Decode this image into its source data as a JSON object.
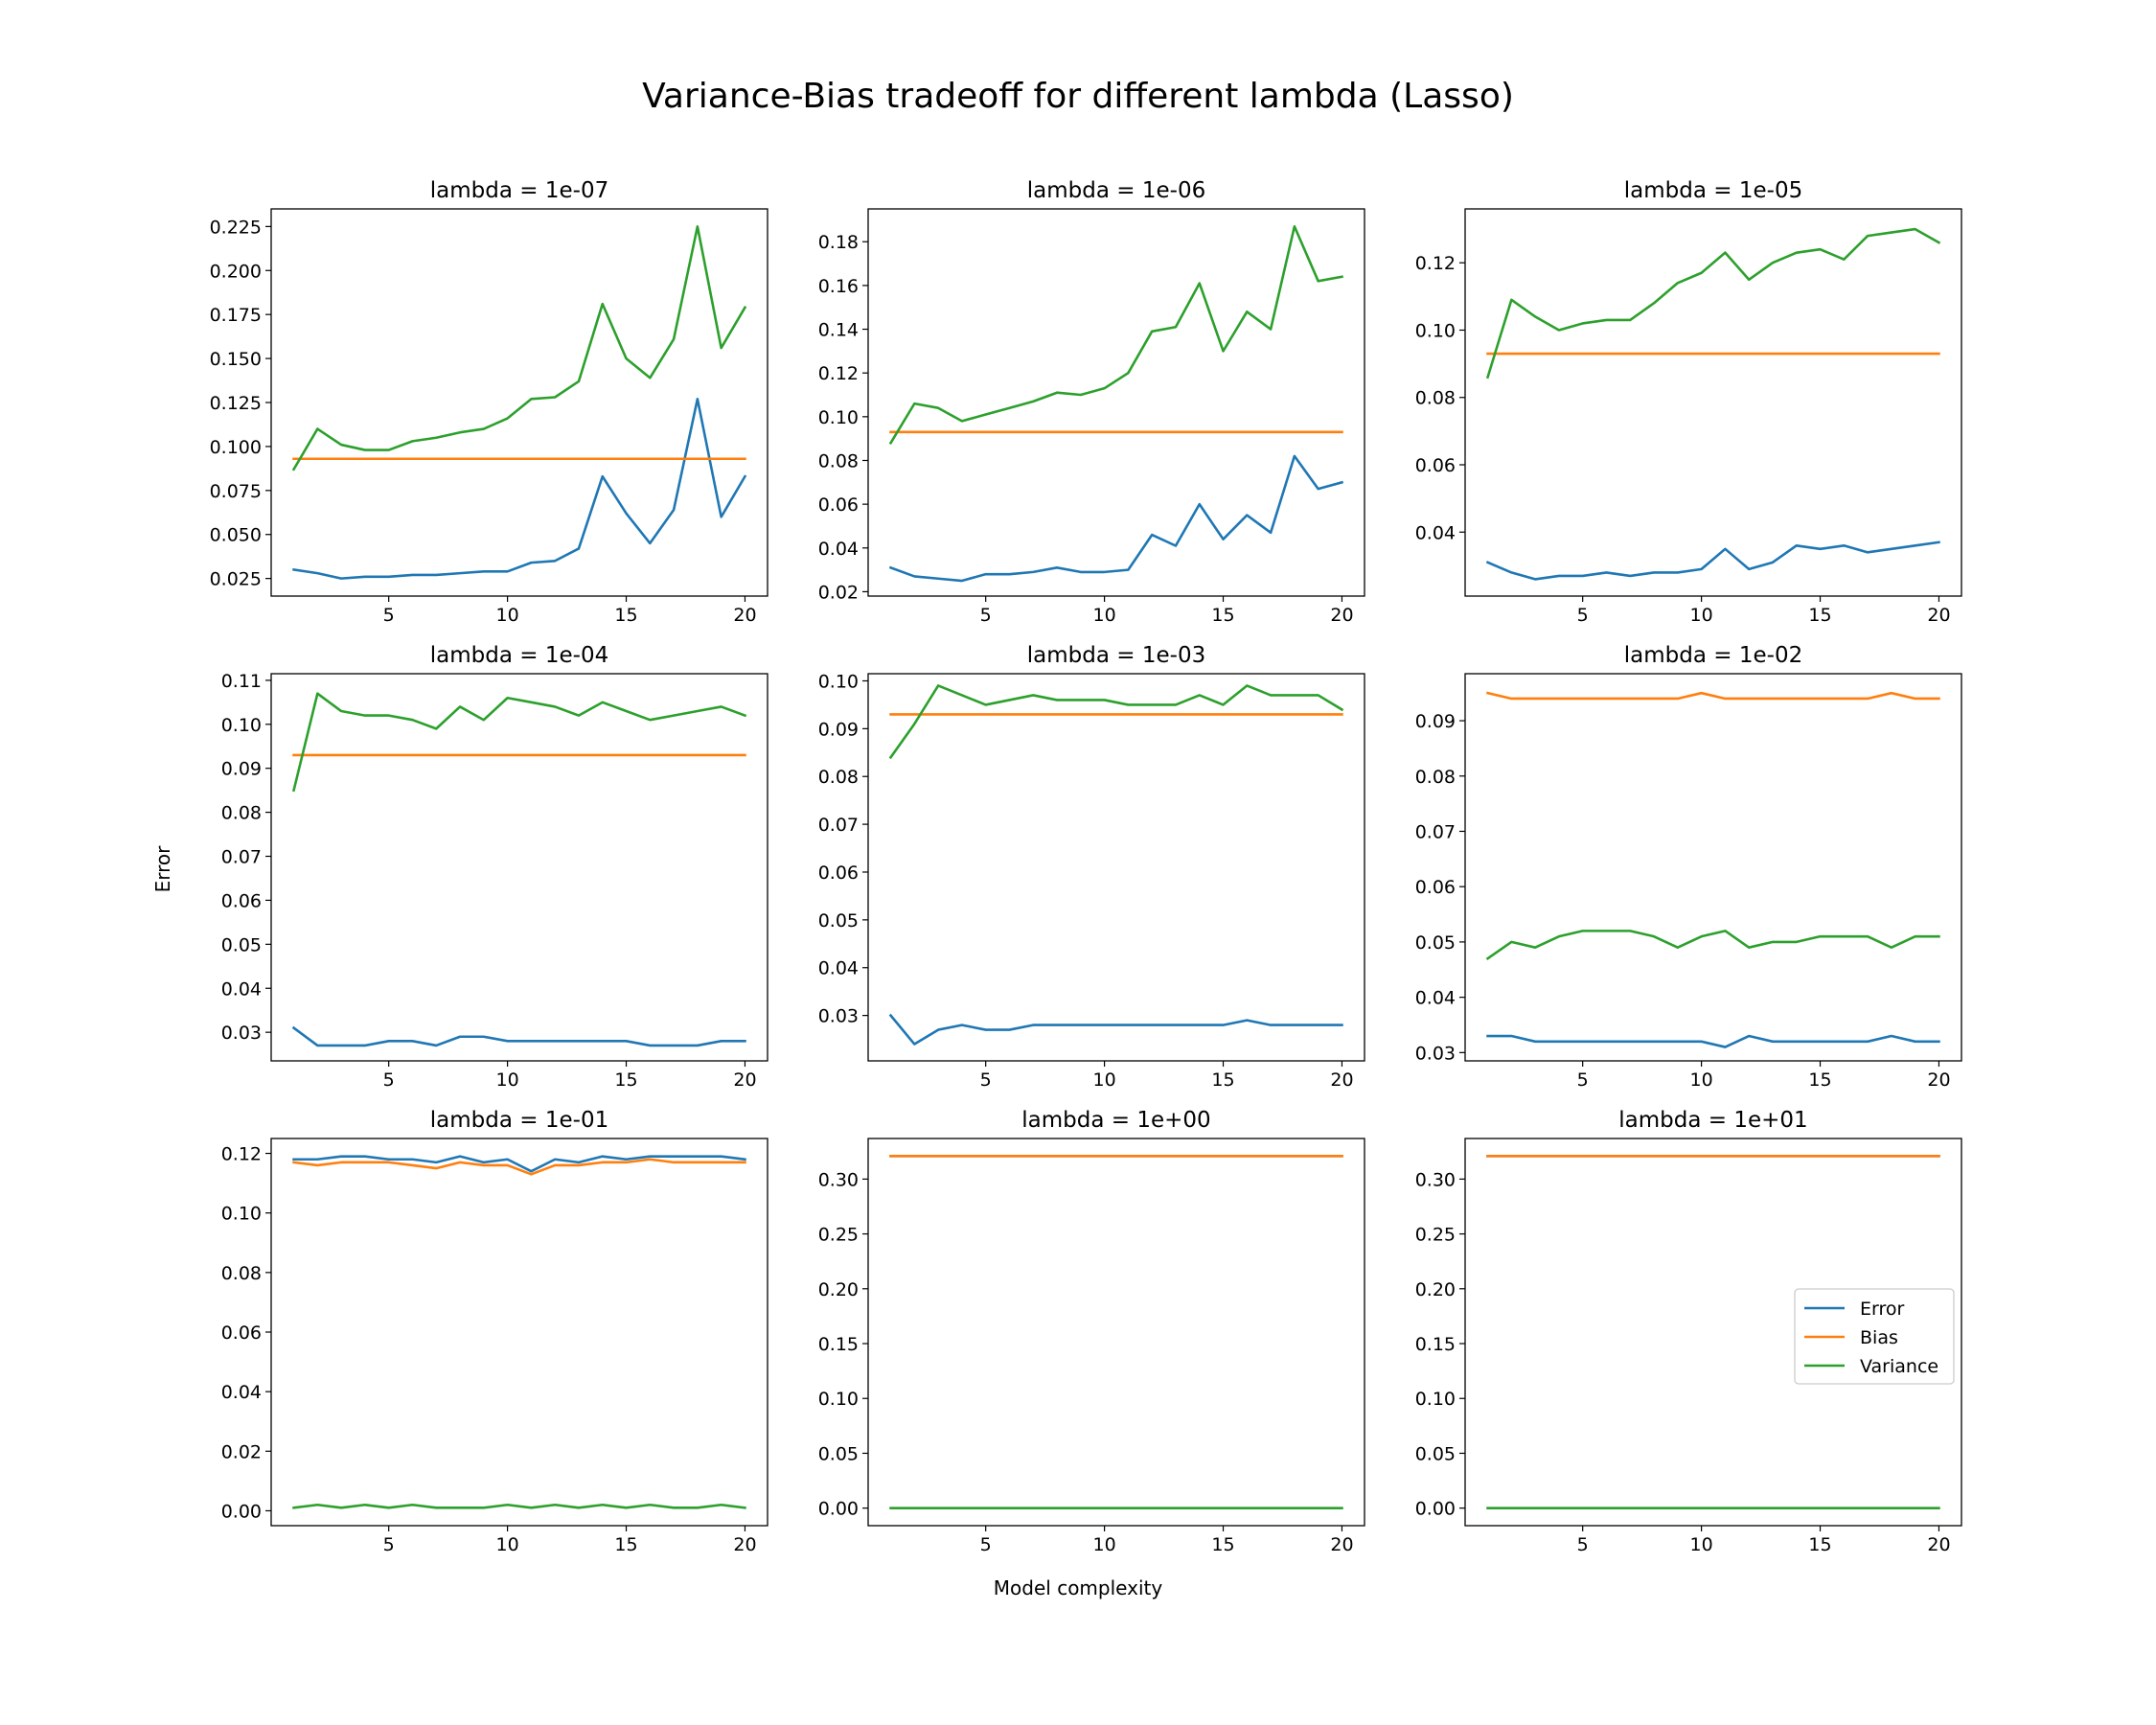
{
  "figure": {
    "suptitle": "Variance-Bias tradeoff for different lambda (Lasso)",
    "xlabel": "Model complexity",
    "ylabel": "Error"
  },
  "colors": {
    "Error": "#1f77b4",
    "Bias": "#ff7f0e",
    "Variance": "#2ca02c"
  },
  "legend": {
    "entries": [
      "Error",
      "Bias",
      "Variance"
    ],
    "panel_index": 8,
    "placement": "center-right"
  },
  "chart_data": [
    {
      "type": "line",
      "title": "lambda = 1e-07",
      "x": [
        1,
        2,
        3,
        4,
        5,
        6,
        7,
        8,
        9,
        10,
        11,
        12,
        13,
        14,
        15,
        16,
        17,
        18,
        19,
        20
      ],
      "xticks": [
        5,
        10,
        15,
        20
      ],
      "xlim": [
        0.05,
        20.95
      ],
      "ylim": [
        0.015,
        0.235
      ],
      "yticks": [
        0.025,
        0.05,
        0.075,
        0.1,
        0.125,
        0.15,
        0.175,
        0.2,
        0.225
      ],
      "ytick_labels": [
        "0.025",
        "0.050",
        "0.075",
        "0.100",
        "0.125",
        "0.150",
        "0.175",
        "0.200",
        "0.225"
      ],
      "series": [
        {
          "name": "Error",
          "values": [
            0.03,
            0.028,
            0.025,
            0.026,
            0.026,
            0.027,
            0.027,
            0.028,
            0.029,
            0.029,
            0.034,
            0.035,
            0.042,
            0.083,
            0.062,
            0.045,
            0.064,
            0.127,
            0.06,
            0.083
          ]
        },
        {
          "name": "Bias",
          "values": [
            0.093,
            0.093,
            0.093,
            0.093,
            0.093,
            0.093,
            0.093,
            0.093,
            0.093,
            0.093,
            0.093,
            0.093,
            0.093,
            0.093,
            0.093,
            0.093,
            0.093,
            0.093,
            0.093,
            0.093
          ]
        },
        {
          "name": "Variance",
          "values": [
            0.087,
            0.11,
            0.101,
            0.098,
            0.098,
            0.103,
            0.105,
            0.108,
            0.11,
            0.116,
            0.127,
            0.128,
            0.137,
            0.181,
            0.15,
            0.139,
            0.161,
            0.225,
            0.156,
            0.179
          ]
        }
      ]
    },
    {
      "type": "line",
      "title": "lambda = 1e-06",
      "x": [
        1,
        2,
        3,
        4,
        5,
        6,
        7,
        8,
        9,
        10,
        11,
        12,
        13,
        14,
        15,
        16,
        17,
        18,
        19,
        20
      ],
      "xticks": [
        5,
        10,
        15,
        20
      ],
      "xlim": [
        0.05,
        20.95
      ],
      "ylim": [
        0.018,
        0.195
      ],
      "yticks": [
        0.02,
        0.04,
        0.06,
        0.08,
        0.1,
        0.12,
        0.14,
        0.16,
        0.18
      ],
      "ytick_labels": [
        "0.02",
        "0.04",
        "0.06",
        "0.08",
        "0.10",
        "0.12",
        "0.14",
        "0.16",
        "0.18"
      ],
      "series": [
        {
          "name": "Error",
          "values": [
            0.031,
            0.027,
            0.026,
            0.025,
            0.028,
            0.028,
            0.029,
            0.031,
            0.029,
            0.029,
            0.03,
            0.046,
            0.041,
            0.06,
            0.044,
            0.055,
            0.047,
            0.082,
            0.067,
            0.07
          ]
        },
        {
          "name": "Bias",
          "values": [
            0.093,
            0.093,
            0.093,
            0.093,
            0.093,
            0.093,
            0.093,
            0.093,
            0.093,
            0.093,
            0.093,
            0.093,
            0.093,
            0.093,
            0.093,
            0.093,
            0.093,
            0.093,
            0.093,
            0.093
          ]
        },
        {
          "name": "Variance",
          "values": [
            0.088,
            0.106,
            0.104,
            0.098,
            0.101,
            0.104,
            0.107,
            0.111,
            0.11,
            0.113,
            0.12,
            0.139,
            0.141,
            0.161,
            0.13,
            0.148,
            0.14,
            0.187,
            0.162,
            0.164
          ]
        }
      ]
    },
    {
      "type": "line",
      "title": "lambda = 1e-05",
      "x": [
        1,
        2,
        3,
        4,
        5,
        6,
        7,
        8,
        9,
        10,
        11,
        12,
        13,
        14,
        15,
        16,
        17,
        18,
        19,
        20
      ],
      "xticks": [
        5,
        10,
        15,
        20
      ],
      "xlim": [
        0.05,
        20.95
      ],
      "ylim": [
        0.021,
        0.136
      ],
      "yticks": [
        0.04,
        0.06,
        0.08,
        0.1,
        0.12
      ],
      "ytick_labels": [
        "0.04",
        "0.06",
        "0.08",
        "0.10",
        "0.12"
      ],
      "series": [
        {
          "name": "Error",
          "values": [
            0.031,
            0.028,
            0.026,
            0.027,
            0.027,
            0.028,
            0.027,
            0.028,
            0.028,
            0.029,
            0.035,
            0.029,
            0.031,
            0.036,
            0.035,
            0.036,
            0.034,
            0.035,
            0.036,
            0.037
          ]
        },
        {
          "name": "Bias",
          "values": [
            0.093,
            0.093,
            0.093,
            0.093,
            0.093,
            0.093,
            0.093,
            0.093,
            0.093,
            0.093,
            0.093,
            0.093,
            0.093,
            0.093,
            0.093,
            0.093,
            0.093,
            0.093,
            0.093,
            0.093
          ]
        },
        {
          "name": "Variance",
          "values": [
            0.086,
            0.109,
            0.104,
            0.1,
            0.102,
            0.103,
            0.103,
            0.108,
            0.114,
            0.117,
            0.123,
            0.115,
            0.12,
            0.123,
            0.124,
            0.121,
            0.128,
            0.129,
            0.13,
            0.126
          ]
        }
      ]
    },
    {
      "type": "line",
      "title": "lambda = 1e-04",
      "x": [
        1,
        2,
        3,
        4,
        5,
        6,
        7,
        8,
        9,
        10,
        11,
        12,
        13,
        14,
        15,
        16,
        17,
        18,
        19,
        20
      ],
      "xticks": [
        5,
        10,
        15,
        20
      ],
      "xlim": [
        0.05,
        20.95
      ],
      "ylim": [
        0.0235,
        0.1115
      ],
      "yticks": [
        0.03,
        0.04,
        0.05,
        0.06,
        0.07,
        0.08,
        0.09,
        0.1,
        0.11
      ],
      "ytick_labels": [
        "0.03",
        "0.04",
        "0.05",
        "0.06",
        "0.07",
        "0.08",
        "0.09",
        "0.10",
        "0.11"
      ],
      "series": [
        {
          "name": "Error",
          "values": [
            0.031,
            0.027,
            0.027,
            0.027,
            0.028,
            0.028,
            0.027,
            0.029,
            0.029,
            0.028,
            0.028,
            0.028,
            0.028,
            0.028,
            0.028,
            0.027,
            0.027,
            0.027,
            0.028,
            0.028
          ]
        },
        {
          "name": "Bias",
          "values": [
            0.093,
            0.093,
            0.093,
            0.093,
            0.093,
            0.093,
            0.093,
            0.093,
            0.093,
            0.093,
            0.093,
            0.093,
            0.093,
            0.093,
            0.093,
            0.093,
            0.093,
            0.093,
            0.093,
            0.093
          ]
        },
        {
          "name": "Variance",
          "values": [
            0.085,
            0.107,
            0.103,
            0.102,
            0.102,
            0.101,
            0.099,
            0.104,
            0.101,
            0.106,
            0.105,
            0.104,
            0.102,
            0.105,
            0.103,
            0.101,
            0.102,
            0.103,
            0.104,
            0.102
          ]
        }
      ]
    },
    {
      "type": "line",
      "title": "lambda = 1e-03",
      "x": [
        1,
        2,
        3,
        4,
        5,
        6,
        7,
        8,
        9,
        10,
        11,
        12,
        13,
        14,
        15,
        16,
        17,
        18,
        19,
        20
      ],
      "xticks": [
        5,
        10,
        15,
        20
      ],
      "xlim": [
        0.05,
        20.95
      ],
      "ylim": [
        0.0205,
        0.1015
      ],
      "yticks": [
        0.03,
        0.04,
        0.05,
        0.06,
        0.07,
        0.08,
        0.09,
        0.1
      ],
      "ytick_labels": [
        "0.03",
        "0.04",
        "0.05",
        "0.06",
        "0.07",
        "0.08",
        "0.09",
        "0.10"
      ],
      "series": [
        {
          "name": "Error",
          "values": [
            0.03,
            0.024,
            0.027,
            0.028,
            0.027,
            0.027,
            0.028,
            0.028,
            0.028,
            0.028,
            0.028,
            0.028,
            0.028,
            0.028,
            0.028,
            0.029,
            0.028,
            0.028,
            0.028,
            0.028
          ]
        },
        {
          "name": "Bias",
          "values": [
            0.093,
            0.093,
            0.093,
            0.093,
            0.093,
            0.093,
            0.093,
            0.093,
            0.093,
            0.093,
            0.093,
            0.093,
            0.093,
            0.093,
            0.093,
            0.093,
            0.093,
            0.093,
            0.093,
            0.093
          ]
        },
        {
          "name": "Variance",
          "values": [
            0.084,
            0.091,
            0.099,
            0.097,
            0.095,
            0.096,
            0.097,
            0.096,
            0.096,
            0.096,
            0.095,
            0.095,
            0.095,
            0.097,
            0.095,
            0.099,
            0.097,
            0.097,
            0.097,
            0.094
          ]
        }
      ]
    },
    {
      "type": "line",
      "title": "lambda = 1e-02",
      "x": [
        1,
        2,
        3,
        4,
        5,
        6,
        7,
        8,
        9,
        10,
        11,
        12,
        13,
        14,
        15,
        16,
        17,
        18,
        19,
        20
      ],
      "xticks": [
        5,
        10,
        15,
        20
      ],
      "xlim": [
        0.05,
        20.95
      ],
      "ylim": [
        0.0285,
        0.0985
      ],
      "yticks": [
        0.03,
        0.04,
        0.05,
        0.06,
        0.07,
        0.08,
        0.09
      ],
      "ytick_labels": [
        "0.03",
        "0.04",
        "0.05",
        "0.06",
        "0.07",
        "0.08",
        "0.09"
      ],
      "series": [
        {
          "name": "Error",
          "values": [
            0.033,
            0.033,
            0.032,
            0.032,
            0.032,
            0.032,
            0.032,
            0.032,
            0.032,
            0.032,
            0.031,
            0.033,
            0.032,
            0.032,
            0.032,
            0.032,
            0.032,
            0.033,
            0.032,
            0.032
          ]
        },
        {
          "name": "Bias",
          "values": [
            0.095,
            0.094,
            0.094,
            0.094,
            0.094,
            0.094,
            0.094,
            0.094,
            0.094,
            0.095,
            0.094,
            0.094,
            0.094,
            0.094,
            0.094,
            0.094,
            0.094,
            0.095,
            0.094,
            0.094
          ]
        },
        {
          "name": "Variance",
          "values": [
            0.047,
            0.05,
            0.049,
            0.051,
            0.052,
            0.052,
            0.052,
            0.051,
            0.049,
            0.051,
            0.052,
            0.049,
            0.05,
            0.05,
            0.051,
            0.051,
            0.051,
            0.049,
            0.051,
            0.051
          ]
        }
      ]
    },
    {
      "type": "line",
      "title": "lambda = 1e-01",
      "x": [
        1,
        2,
        3,
        4,
        5,
        6,
        7,
        8,
        9,
        10,
        11,
        12,
        13,
        14,
        15,
        16,
        17,
        18,
        19,
        20
      ],
      "xticks": [
        5,
        10,
        15,
        20
      ],
      "xlim": [
        0.05,
        20.95
      ],
      "ylim": [
        -0.005,
        0.125
      ],
      "yticks": [
        0,
        0.02,
        0.04,
        0.06,
        0.08,
        0.1,
        0.12
      ],
      "ytick_labels": [
        "0.00",
        "0.02",
        "0.04",
        "0.06",
        "0.08",
        "0.10",
        "0.12"
      ],
      "series": [
        {
          "name": "Error",
          "values": [
            0.118,
            0.118,
            0.119,
            0.119,
            0.118,
            0.118,
            0.117,
            0.119,
            0.117,
            0.118,
            0.114,
            0.118,
            0.117,
            0.119,
            0.118,
            0.119,
            0.119,
            0.119,
            0.119,
            0.118
          ]
        },
        {
          "name": "Bias",
          "values": [
            0.117,
            0.116,
            0.117,
            0.117,
            0.117,
            0.116,
            0.115,
            0.117,
            0.116,
            0.116,
            0.113,
            0.116,
            0.116,
            0.117,
            0.117,
            0.118,
            0.117,
            0.117,
            0.117,
            0.117
          ]
        },
        {
          "name": "Variance",
          "values": [
            0.001,
            0.002,
            0.001,
            0.002,
            0.001,
            0.002,
            0.001,
            0.001,
            0.001,
            0.002,
            0.001,
            0.002,
            0.001,
            0.002,
            0.001,
            0.002,
            0.001,
            0.001,
            0.002,
            0.001
          ]
        }
      ]
    },
    {
      "type": "line",
      "title": "lambda = 1e+00",
      "x": [
        1,
        2,
        3,
        4,
        5,
        6,
        7,
        8,
        9,
        10,
        11,
        12,
        13,
        14,
        15,
        16,
        17,
        18,
        19,
        20
      ],
      "xticks": [
        5,
        10,
        15,
        20
      ],
      "xlim": [
        0.05,
        20.95
      ],
      "ylim": [
        -0.016,
        0.337
      ],
      "yticks": [
        0,
        0.05,
        0.1,
        0.15,
        0.2,
        0.25,
        0.3
      ],
      "ytick_labels": [
        "0.00",
        "0.05",
        "0.10",
        "0.15",
        "0.20",
        "0.25",
        "0.30"
      ],
      "series": [
        {
          "name": "Error",
          "values": [
            0.321,
            0.321,
            0.321,
            0.321,
            0.321,
            0.321,
            0.321,
            0.321,
            0.321,
            0.321,
            0.321,
            0.321,
            0.321,
            0.321,
            0.321,
            0.321,
            0.321,
            0.321,
            0.321,
            0.321
          ]
        },
        {
          "name": "Bias",
          "values": [
            0.321,
            0.321,
            0.321,
            0.321,
            0.321,
            0.321,
            0.321,
            0.321,
            0.321,
            0.321,
            0.321,
            0.321,
            0.321,
            0.321,
            0.321,
            0.321,
            0.321,
            0.321,
            0.321,
            0.321
          ]
        },
        {
          "name": "Variance",
          "values": [
            0,
            0,
            0,
            0,
            0,
            0,
            0,
            0,
            0,
            0,
            0,
            0,
            0,
            0,
            0,
            0,
            0,
            0,
            0,
            0
          ]
        }
      ]
    },
    {
      "type": "line",
      "title": "lambda = 1e+01",
      "x": [
        1,
        2,
        3,
        4,
        5,
        6,
        7,
        8,
        9,
        10,
        11,
        12,
        13,
        14,
        15,
        16,
        17,
        18,
        19,
        20
      ],
      "xticks": [
        5,
        10,
        15,
        20
      ],
      "xlim": [
        0.05,
        20.95
      ],
      "ylim": [
        -0.016,
        0.337
      ],
      "yticks": [
        0,
        0.05,
        0.1,
        0.15,
        0.2,
        0.25,
        0.3
      ],
      "ytick_labels": [
        "0.00",
        "0.05",
        "0.10",
        "0.15",
        "0.20",
        "0.25",
        "0.30"
      ],
      "series": [
        {
          "name": "Error",
          "values": [
            0.321,
            0.321,
            0.321,
            0.321,
            0.321,
            0.321,
            0.321,
            0.321,
            0.321,
            0.321,
            0.321,
            0.321,
            0.321,
            0.321,
            0.321,
            0.321,
            0.321,
            0.321,
            0.321,
            0.321
          ]
        },
        {
          "name": "Bias",
          "values": [
            0.321,
            0.321,
            0.321,
            0.321,
            0.321,
            0.321,
            0.321,
            0.321,
            0.321,
            0.321,
            0.321,
            0.321,
            0.321,
            0.321,
            0.321,
            0.321,
            0.321,
            0.321,
            0.321,
            0.321
          ]
        },
        {
          "name": "Variance",
          "values": [
            0,
            0,
            0,
            0,
            0,
            0,
            0,
            0,
            0,
            0,
            0,
            0,
            0,
            0,
            0,
            0,
            0,
            0,
            0,
            0
          ]
        }
      ]
    }
  ]
}
